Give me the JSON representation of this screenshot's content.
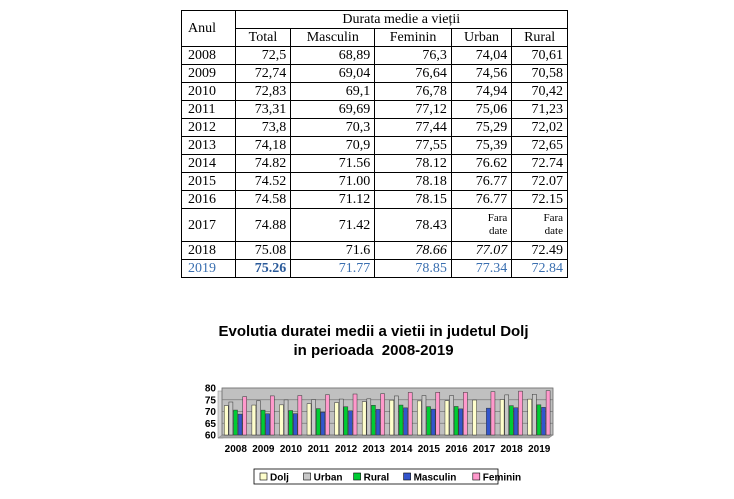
{
  "table": {
    "header_year": "Anul",
    "header_group": "Durata medie a vieții",
    "columns": [
      "Total",
      "Masculin",
      "Feminin",
      "Urban",
      "Rural"
    ],
    "rows": [
      [
        "2008",
        "72,5",
        "68,89",
        "76,3",
        "74,04",
        "70,61"
      ],
      [
        "2009",
        "72,74",
        "69,04",
        "76,64",
        "74,56",
        "70,58"
      ],
      [
        "2010",
        "72,83",
        "69,1",
        "76,78",
        "74,94",
        "70,42"
      ],
      [
        "2011",
        "73,31",
        "69,69",
        "77,12",
        "75,06",
        "71,23"
      ],
      [
        "2012",
        "73,8",
        "70,3",
        "77,44",
        "75,29",
        "72,02"
      ],
      [
        "2013",
        "74,18",
        "70,9",
        "77,55",
        "75,39",
        "72,65"
      ],
      [
        "2014",
        "74.82",
        "71.56",
        "78.12",
        "76.62",
        "72.74"
      ],
      [
        "2015",
        "74.52",
        "71.00",
        "78.18",
        "76.77",
        "72.07"
      ],
      [
        "2016",
        "74.58",
        "71.12",
        "78.15",
        "76.77",
        "72.15"
      ],
      [
        "2017",
        "74.88",
        "71.42",
        "78.43",
        "Fara date",
        "Fara date"
      ],
      [
        "2018",
        "75.08",
        "71.6",
        "78.66",
        "77.07",
        "72.49"
      ],
      [
        "2019",
        "75.26",
        "71.77",
        "78.85",
        "77.34",
        "72.84"
      ]
    ]
  },
  "chart_data": {
    "type": "bar",
    "title_lines": [
      "Evolutia duratei medii a vietii in judetul Dolj",
      "in perioada  2008-2019"
    ],
    "categories": [
      "2008",
      "2009",
      "2010",
      "2011",
      "2012",
      "2013",
      "2014",
      "2015",
      "2016",
      "2017",
      "2018",
      "2019"
    ],
    "series": [
      {
        "name": "Dolj",
        "color": "#ffffcc",
        "values": [
          72.5,
          72.74,
          72.83,
          73.31,
          73.8,
          74.18,
          74.82,
          74.52,
          74.58,
          74.88,
          75.08,
          75.26
        ]
      },
      {
        "name": "Urban",
        "color": "#c8c8c8",
        "values": [
          74.04,
          74.56,
          74.94,
          75.06,
          75.29,
          75.39,
          76.62,
          76.77,
          76.77,
          null,
          77.07,
          77.34
        ]
      },
      {
        "name": "Rural",
        "color": "#00cc33",
        "values": [
          70.61,
          70.58,
          70.42,
          71.23,
          72.02,
          72.65,
          72.74,
          72.07,
          72.15,
          null,
          72.49,
          72.84
        ]
      },
      {
        "name": "Masculin",
        "color": "#3355cc",
        "values": [
          68.89,
          69.04,
          69.1,
          69.69,
          70.3,
          70.9,
          71.56,
          71.0,
          71.12,
          71.42,
          71.6,
          71.77
        ]
      },
      {
        "name": "Feminin",
        "color": "#ff99cc",
        "values": [
          76.3,
          76.64,
          76.78,
          77.12,
          77.44,
          77.55,
          78.12,
          78.18,
          78.15,
          78.43,
          78.66,
          78.85
        ]
      }
    ],
    "yticks": [
      "80",
      "75",
      "70",
      "65",
      "60"
    ],
    "ylim": [
      60,
      80
    ],
    "legend_position": "bottom",
    "grid": true
  }
}
